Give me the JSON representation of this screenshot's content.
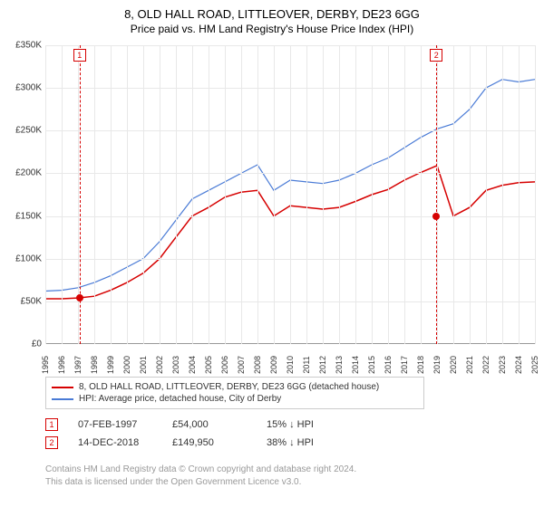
{
  "title": {
    "main": "8, OLD HALL ROAD, LITTLEOVER, DERBY, DE23 6GG",
    "sub": "Price paid vs. HM Land Registry's House Price Index (HPI)"
  },
  "chart": {
    "type": "line",
    "background_color": "#ffffff",
    "grid_color": "#e8e8e8",
    "axis_color": "#999999",
    "text_color": "#333333",
    "x_years": [
      1995,
      1996,
      1997,
      1998,
      1999,
      2000,
      2001,
      2002,
      2003,
      2004,
      2005,
      2006,
      2007,
      2008,
      2009,
      2010,
      2011,
      2012,
      2013,
      2014,
      2015,
      2016,
      2017,
      2018,
      2019,
      2020,
      2021,
      2022,
      2023,
      2024,
      2025
    ],
    "y_ticks": [
      "£0",
      "£50K",
      "£100K",
      "£150K",
      "£200K",
      "£250K",
      "£300K",
      "£350K"
    ],
    "ylim": [
      0,
      350000
    ],
    "series": [
      {
        "name": "property",
        "label": "8, OLD HALL ROAD, LITTLEOVER, DERBY, DE23 6GG (detached house)",
        "color": "#d60000",
        "width": 1.5,
        "values": [
          53000,
          53000,
          54000,
          56000,
          63000,
          72000,
          83000,
          100000,
          125000,
          150000,
          160000,
          172000,
          178000,
          180000,
          150000,
          162000,
          160000,
          158000,
          160000,
          167000,
          175000,
          181000,
          192000,
          201000,
          209000,
          150000,
          160000,
          180000,
          186000,
          189000,
          190000
        ]
      },
      {
        "name": "hpi",
        "label": "HPI: Average price, detached house, City of Derby",
        "color": "#4a7bd6",
        "width": 1.2,
        "values": [
          62000,
          63000,
          66000,
          72000,
          80000,
          90000,
          100000,
          120000,
          145000,
          170000,
          180000,
          190000,
          200000,
          210000,
          180000,
          192000,
          190000,
          188000,
          192000,
          200000,
          210000,
          218000,
          230000,
          242000,
          252000,
          258000,
          275000,
          300000,
          310000,
          307000,
          310000
        ]
      }
    ],
    "events": [
      {
        "num": "1",
        "year": 1997.1,
        "date": "07-FEB-1997",
        "price": "£54,000",
        "delta": "15% ↓ HPI",
        "dot_value": 54000
      },
      {
        "num": "2",
        "year": 2018.96,
        "date": "14-DEC-2018",
        "price": "£149,950",
        "delta": "38% ↓ HPI",
        "dot_value": 149950
      }
    ],
    "event_line_color": "#d60000"
  },
  "footer": {
    "line1": "Contains HM Land Registry data © Crown copyright and database right 2024.",
    "line2": "This data is licensed under the Open Government Licence v3.0."
  },
  "fontsize": {
    "title": 13,
    "subtitle": 12,
    "axis": 10,
    "legend": 10,
    "footer": 10
  }
}
